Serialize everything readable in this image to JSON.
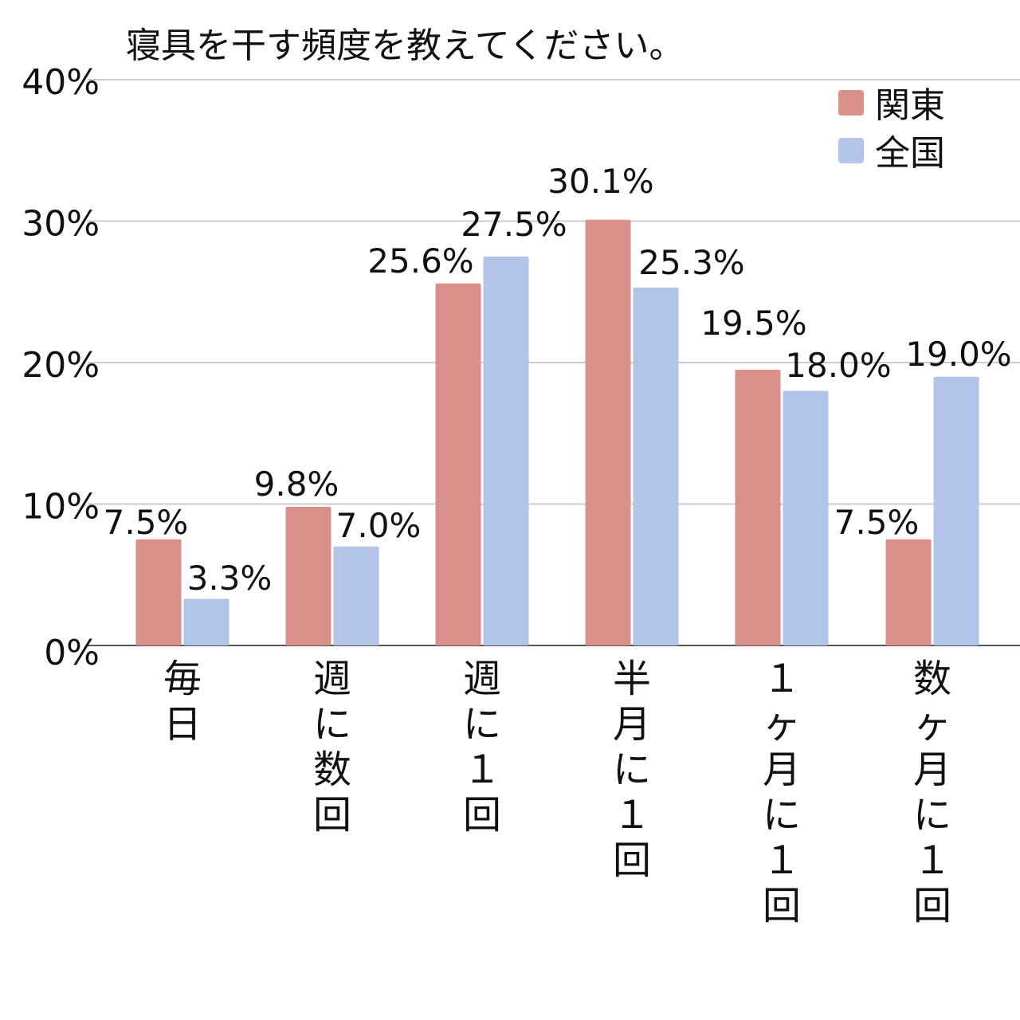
{
  "chart_data": {
    "type": "bar",
    "title": "寝具を干す頻度を教えてください。",
    "categories": [
      "毎日",
      "週に数回",
      "週に１回",
      "半月に１回",
      "１ヶ月に１回",
      "数ヶ月に１回"
    ],
    "series": [
      {
        "name": "関東",
        "color": "#d9908a",
        "values": [
          7.5,
          9.8,
          25.6,
          30.1,
          19.5,
          7.5
        ],
        "labels": [
          "7.5%",
          "9.8%",
          "25.6%",
          "30.1%",
          "19.5%",
          "7.5%"
        ]
      },
      {
        "name": "全国",
        "color": "#b2c5e8",
        "values": [
          3.3,
          7.0,
          27.5,
          25.3,
          18.0,
          19.0
        ],
        "labels": [
          "3.3%",
          "7.0%",
          "27.5%",
          "25.3%",
          "18.0%",
          "19.0%"
        ]
      }
    ],
    "y_ticks": [
      "0%",
      "10%",
      "20%",
      "30%",
      "40%"
    ],
    "ylim": [
      0,
      40
    ],
    "grid": true,
    "legend_position": "top-right"
  }
}
